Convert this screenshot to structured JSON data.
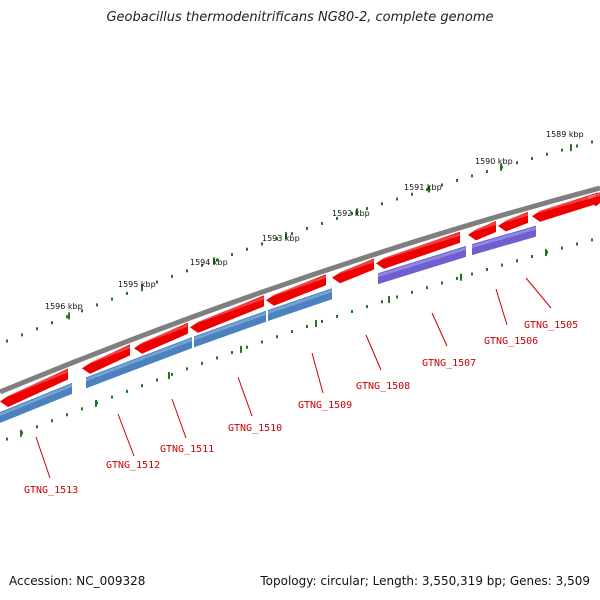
{
  "title": "Geobacillus thermodenitrificans NG80-2, complete genome",
  "accession_text": "Accession: NC_009328",
  "summary_text": "Topology: circular; Length: 3,550,319 bp; Genes: 3,509",
  "colors": {
    "backbone": "#7f7f7f",
    "forward_gene": "#ee0000",
    "reverse_gene_blue": "#4a82c0",
    "reverse_gene_purple": "#6d5fd0",
    "tick": "#1f7a1f",
    "label": "#cc0000"
  },
  "kbp_ticks": [
    {
      "label": "1589 kbp"
    },
    {
      "label": "1590 kbp"
    },
    {
      "label": "1591 kbp"
    },
    {
      "label": "1592 kbp"
    },
    {
      "label": "1593 kbp"
    },
    {
      "label": "1594 kbp"
    },
    {
      "label": "1595 kbp"
    },
    {
      "label": "1596 kbp"
    }
  ],
  "genes": [
    {
      "id": "GTNG_1505"
    },
    {
      "id": "GTNG_1506"
    },
    {
      "id": "GTNG_1507"
    },
    {
      "id": "GTNG_1508"
    },
    {
      "id": "GTNG_1509"
    },
    {
      "id": "GTNG_1510"
    },
    {
      "id": "GTNG_1511"
    },
    {
      "id": "GTNG_1512"
    },
    {
      "id": "GTNG_1513"
    }
  ]
}
